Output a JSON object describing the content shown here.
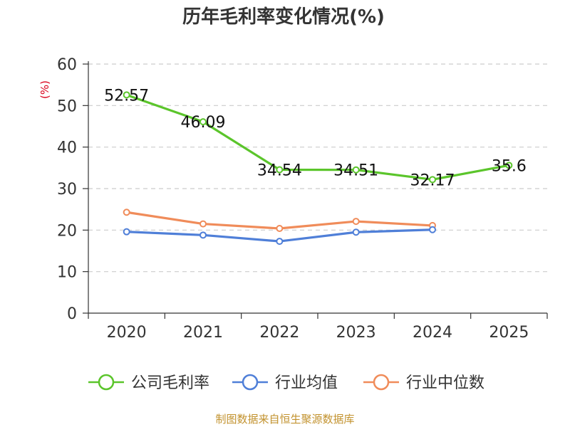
{
  "chart_data": {
    "type": "line",
    "title": "历年毛利率变化情况(%)",
    "ylabel": "(%)",
    "xlabel": "",
    "categories": [
      "2020",
      "2021",
      "2022",
      "2023",
      "2024",
      "2025"
    ],
    "ylim": [
      0,
      60
    ],
    "yticks": [
      0,
      10,
      20,
      30,
      40,
      50,
      60
    ],
    "grid": true,
    "legend_position": "bottom",
    "series": [
      {
        "name": "公司毛利率",
        "color": "#5bc52b",
        "values": [
          52.57,
          46.09,
          34.54,
          34.51,
          32.17,
          35.6
        ],
        "labels": [
          "52.57",
          "46.09",
          "34.54",
          "34.51",
          "32.17",
          "35.6"
        ]
      },
      {
        "name": "行业均值",
        "color": "#4f7fd8",
        "values": [
          19.6,
          18.8,
          17.3,
          19.5,
          20.1,
          null
        ]
      },
      {
        "name": "行业中位数",
        "color": "#f08c5a",
        "values": [
          24.3,
          21.5,
          20.4,
          22.1,
          21.1,
          null
        ]
      }
    ]
  },
  "footer": {
    "source": "制图数据来自恒生聚源数据库"
  }
}
